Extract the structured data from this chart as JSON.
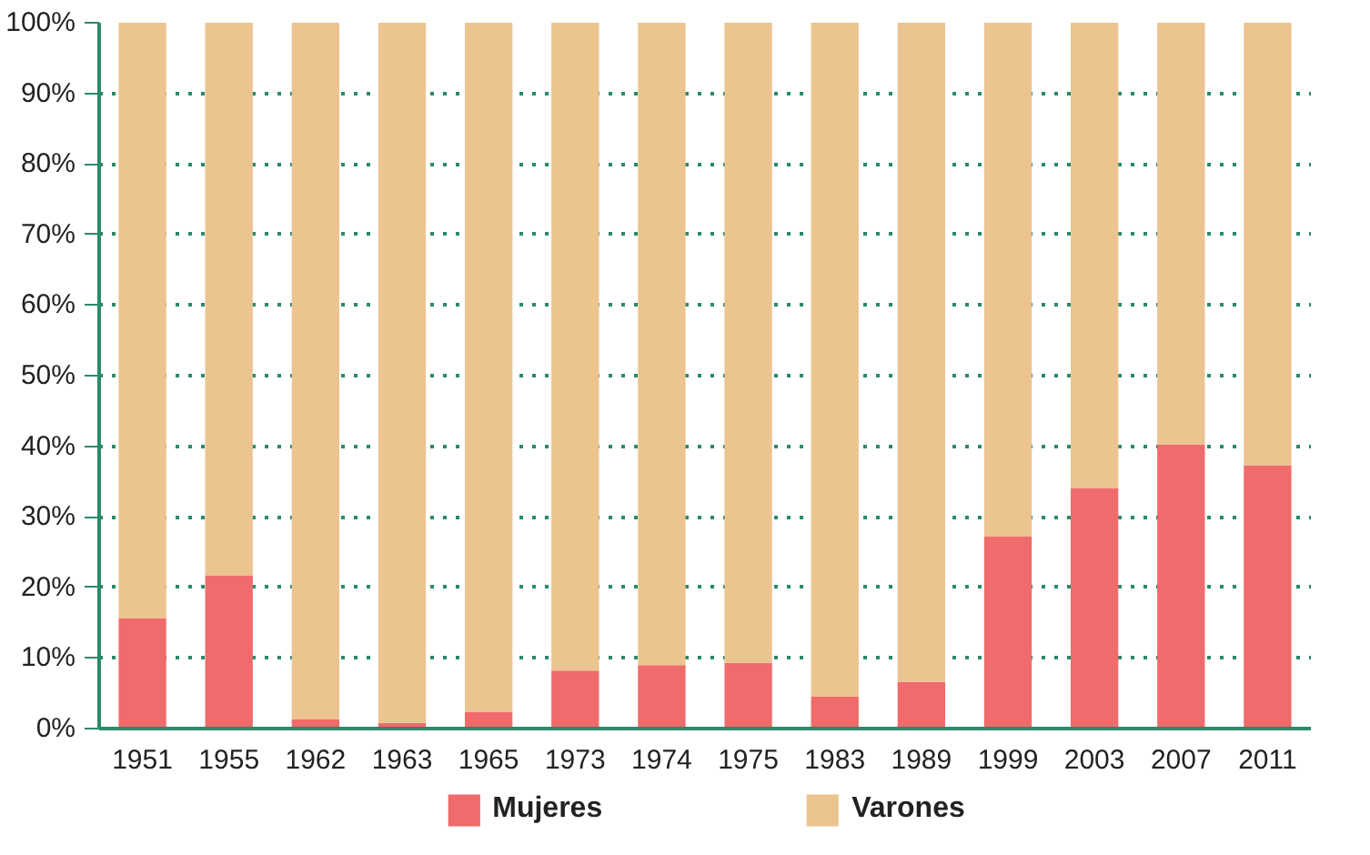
{
  "chart_data": {
    "type": "bar",
    "stacked": true,
    "categories": [
      "1951",
      "1955",
      "1962",
      "1963",
      "1965",
      "1973",
      "1974",
      "1975",
      "1983",
      "1989",
      "1999",
      "2003",
      "2007",
      "2011"
    ],
    "series": [
      {
        "name": "Mujeres",
        "color": "#f06b6b",
        "values": [
          15.6,
          21.7,
          1.3,
          0.8,
          2.4,
          8.2,
          9.0,
          9.3,
          4.5,
          6.6,
          27.2,
          34.1,
          40.2,
          37.3
        ]
      },
      {
        "name": "Varones",
        "color": "#ecc490",
        "values": [
          84.4,
          78.3,
          98.7,
          99.2,
          97.6,
          91.8,
          91.0,
          90.7,
          95.5,
          93.4,
          72.8,
          65.9,
          59.8,
          62.7
        ]
      }
    ],
    "ylim": [
      0,
      100
    ],
    "yticks": [
      {
        "value": 0,
        "label": "0%"
      },
      {
        "value": 10,
        "label": "10%"
      },
      {
        "value": 20,
        "label": "20%"
      },
      {
        "value": 30,
        "label": "30%"
      },
      {
        "value": 40,
        "label": "40%"
      },
      {
        "value": 50,
        "label": "50%"
      },
      {
        "value": 60,
        "label": "60%"
      },
      {
        "value": 70,
        "label": "70%"
      },
      {
        "value": 80,
        "label": "80%"
      },
      {
        "value": 90,
        "label": "90%"
      },
      {
        "value": 100,
        "label": "100%"
      }
    ],
    "grid": "y",
    "legend": "bottom"
  }
}
